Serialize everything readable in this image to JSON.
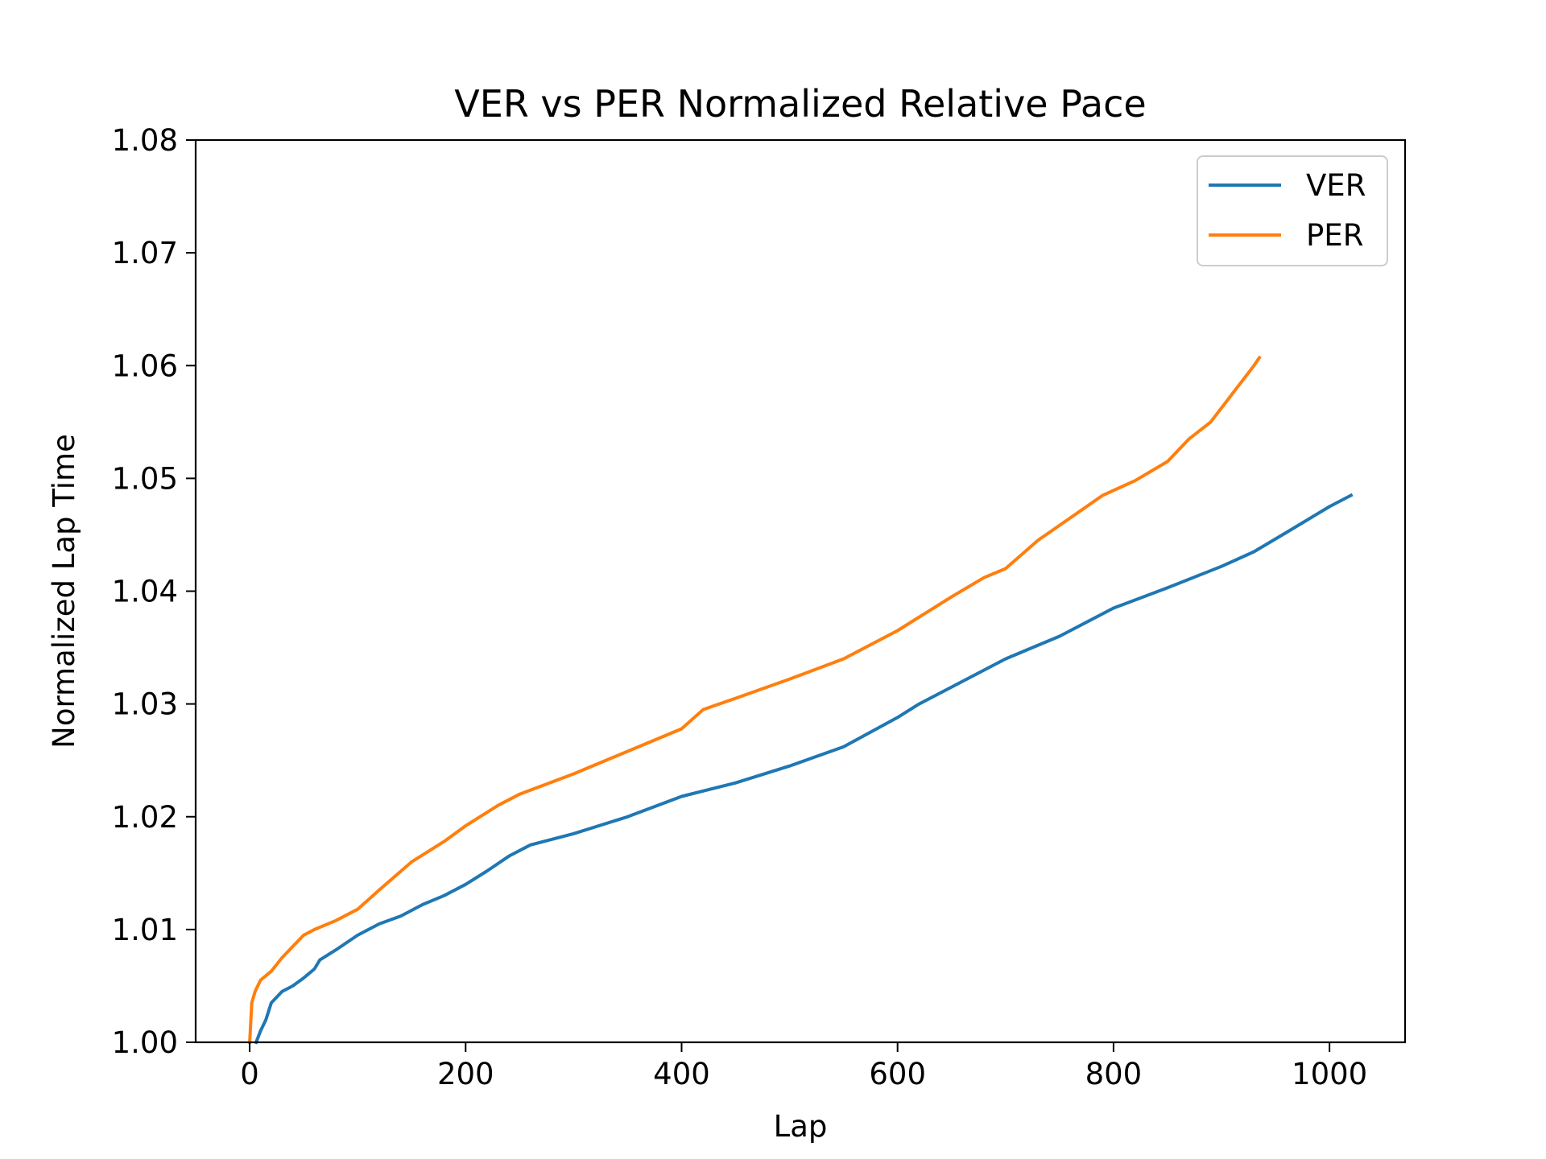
{
  "chart_data": {
    "type": "line",
    "title": "VER vs PER Normalized Relative Pace",
    "xlabel": "Lap",
    "ylabel": "Normalized Lap Time",
    "xlim": [
      -50,
      1070
    ],
    "ylim": [
      1.0,
      1.08
    ],
    "xticks": [
      0,
      200,
      400,
      600,
      800,
      1000
    ],
    "xtick_labels": [
      "0",
      "200",
      "400",
      "600",
      "800",
      "1000"
    ],
    "yticks": [
      1.0,
      1.01,
      1.02,
      1.03,
      1.04,
      1.05,
      1.06,
      1.07,
      1.08
    ],
    "ytick_labels": [
      "1.00",
      "1.01",
      "1.02",
      "1.03",
      "1.04",
      "1.05",
      "1.06",
      "1.07",
      "1.08"
    ],
    "grid": false,
    "legend_position": "top-right",
    "series": [
      {
        "name": "VER",
        "color": "#1f77b4",
        "x": [
          6,
          10,
          15,
          20,
          30,
          40,
          50,
          60,
          65,
          80,
          100,
          120,
          140,
          160,
          180,
          200,
          220,
          240,
          260,
          300,
          350,
          400,
          450,
          500,
          550,
          600,
          620,
          650,
          700,
          750,
          800,
          850,
          900,
          930,
          960,
          1000,
          1020
        ],
        "y": [
          1.0,
          1.001,
          1.002,
          1.0035,
          1.0045,
          1.005,
          1.0057,
          1.0065,
          1.0073,
          1.0082,
          1.0095,
          1.0105,
          1.0112,
          1.0122,
          1.013,
          1.014,
          1.0152,
          1.0165,
          1.0175,
          1.0185,
          1.02,
          1.0218,
          1.023,
          1.0245,
          1.0262,
          1.0288,
          1.03,
          1.0315,
          1.034,
          1.036,
          1.0385,
          1.0403,
          1.0422,
          1.0435,
          1.0452,
          1.0475,
          1.0485
        ]
      },
      {
        "name": "PER",
        "color": "#ff7f0e",
        "x": [
          0,
          2,
          5,
          10,
          20,
          30,
          40,
          50,
          60,
          80,
          100,
          120,
          150,
          180,
          200,
          230,
          250,
          300,
          350,
          400,
          420,
          450,
          500,
          550,
          600,
          650,
          680,
          700,
          730,
          760,
          790,
          820,
          850,
          870,
          890,
          910,
          930,
          935
        ],
        "y": [
          1.0,
          1.0035,
          1.0045,
          1.0055,
          1.0063,
          1.0075,
          1.0085,
          1.0095,
          1.01,
          1.0108,
          1.0118,
          1.0135,
          1.016,
          1.0178,
          1.0192,
          1.021,
          1.022,
          1.0238,
          1.0258,
          1.0278,
          1.0295,
          1.0305,
          1.0322,
          1.034,
          1.0365,
          1.0395,
          1.0412,
          1.042,
          1.0445,
          1.0465,
          1.0485,
          1.0498,
          1.0515,
          1.0535,
          1.055,
          1.0575,
          1.06,
          1.0607
        ]
      }
    ]
  }
}
